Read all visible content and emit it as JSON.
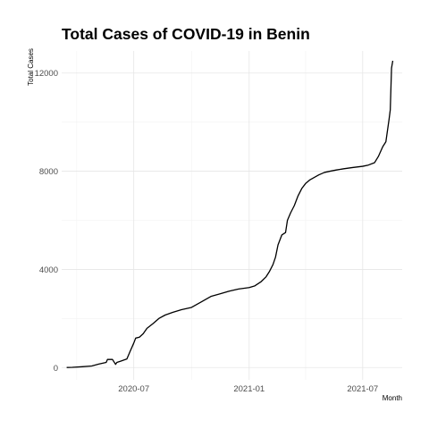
{
  "chart_data": {
    "type": "line",
    "title": "Total Cases of COVID-19 in Benin",
    "xlabel": "Month",
    "ylabel": "Total Cases",
    "xlim": [
      "2020-03-08",
      "2021-09-02"
    ],
    "ylim": [
      -500,
      12900
    ],
    "x_ticks": [
      {
        "date": "2020-07-01",
        "label": "2020-07"
      },
      {
        "date": "2021-01-01",
        "label": "2021-01"
      },
      {
        "date": "2021-07-01",
        "label": "2021-07"
      }
    ],
    "x_minor_ticks": [
      "2020-04-01",
      "2020-10-01",
      "2021-04-01"
    ],
    "y_ticks": [
      0,
      4000,
      8000,
      12000
    ],
    "y_minor_ticks": [
      2000,
      6000,
      10000
    ],
    "grid": true,
    "line_color": "#000000",
    "series": [
      {
        "x": [
          "2020-03-16",
          "2020-03-25",
          "2020-04-10",
          "2020-04-25",
          "2020-05-06",
          "2020-05-18",
          "2020-05-20",
          "2020-05-28",
          "2020-06-02",
          "2020-06-04",
          "2020-06-10",
          "2020-06-20",
          "2020-06-25",
          "2020-07-01",
          "2020-07-04",
          "2020-07-10",
          "2020-07-16",
          "2020-07-22",
          "2020-08-01",
          "2020-08-10",
          "2020-08-20",
          "2020-09-01",
          "2020-09-15",
          "2020-10-01",
          "2020-10-15",
          "2020-11-01",
          "2020-11-15",
          "2020-12-01",
          "2020-12-15",
          "2021-01-01",
          "2021-01-10",
          "2021-01-20",
          "2021-01-28",
          "2021-02-02",
          "2021-02-08",
          "2021-02-12",
          "2021-02-16",
          "2021-02-22",
          "2021-02-28",
          "2021-03-03",
          "2021-03-08",
          "2021-03-14",
          "2021-03-20",
          "2021-03-26",
          "2021-04-01",
          "2021-04-08",
          "2021-04-15",
          "2021-04-22",
          "2021-05-01",
          "2021-05-10",
          "2021-05-20",
          "2021-06-01",
          "2021-06-15",
          "2021-07-01",
          "2021-07-10",
          "2021-07-20",
          "2021-07-26",
          "2021-08-02",
          "2021-08-07",
          "2021-08-12",
          "2021-08-14",
          "2021-08-16",
          "2021-08-18"
        ],
        "y": [
          2,
          10,
          35,
          64,
          140,
          210,
          330,
          330,
          130,
          210,
          260,
          350,
          650,
          1000,
          1200,
          1240,
          1380,
          1600,
          1800,
          2000,
          2140,
          2250,
          2360,
          2450,
          2650,
          2900,
          3000,
          3120,
          3200,
          3260,
          3330,
          3500,
          3700,
          3900,
          4200,
          4500,
          5000,
          5400,
          5500,
          6000,
          6300,
          6600,
          7000,
          7300,
          7500,
          7650,
          7750,
          7850,
          7950,
          8000,
          8050,
          8100,
          8150,
          8200,
          8250,
          8350,
          8600,
          9000,
          9200,
          10100,
          10500,
          12200,
          12500
        ]
      }
    ]
  }
}
